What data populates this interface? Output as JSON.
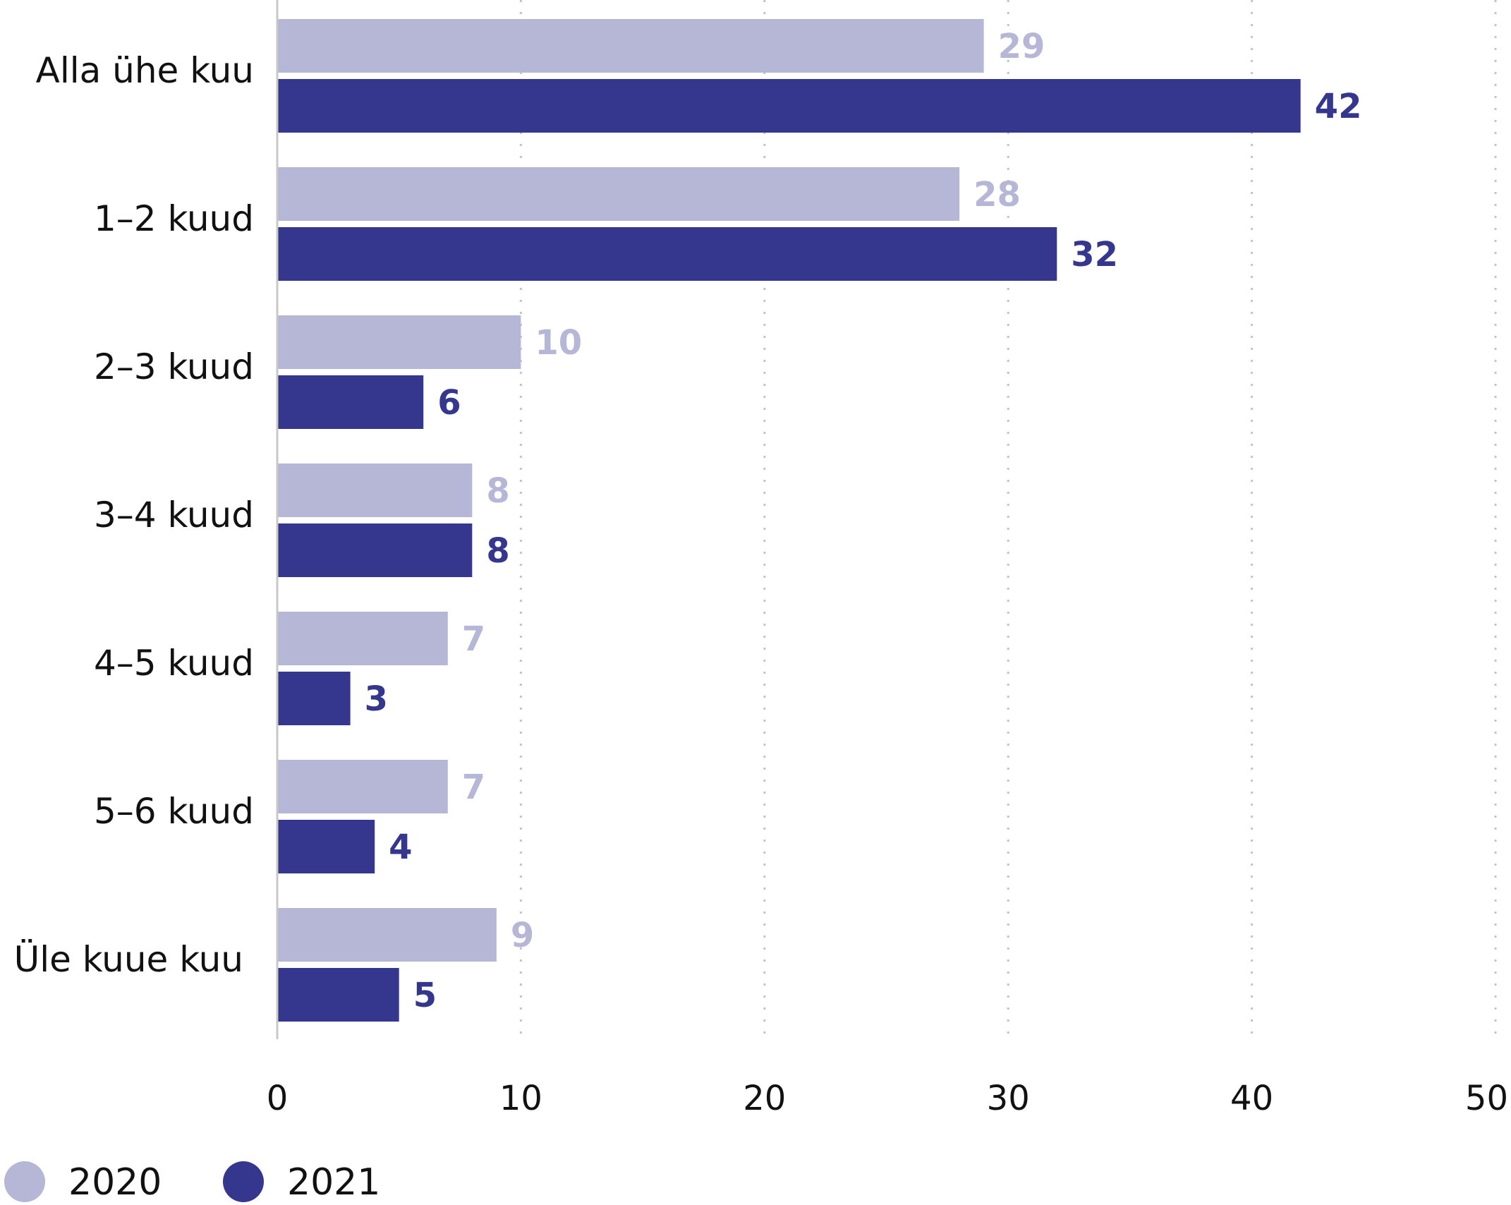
{
  "chart_data": {
    "type": "bar",
    "orientation": "horizontal",
    "categories": [
      "Alla ühe kuu",
      "1–2 kuud",
      "2–3 kuud",
      "3–4  kuud",
      "4–5 kuud",
      "5–6 kuud",
      "Üle kuue kuu"
    ],
    "series": [
      {
        "name": "2020",
        "color": "#b6b7d6",
        "values": [
          29,
          28,
          10,
          8,
          7,
          7,
          9
        ]
      },
      {
        "name": "2021",
        "color": "#35378e",
        "values": [
          42,
          32,
          6,
          8,
          3,
          4,
          5
        ]
      }
    ],
    "xlim": [
      0,
      50
    ],
    "xticks": [
      0,
      10,
      20,
      30,
      40,
      50
    ],
    "grid": "vertical dotted",
    "legend": "bottom-left"
  }
}
